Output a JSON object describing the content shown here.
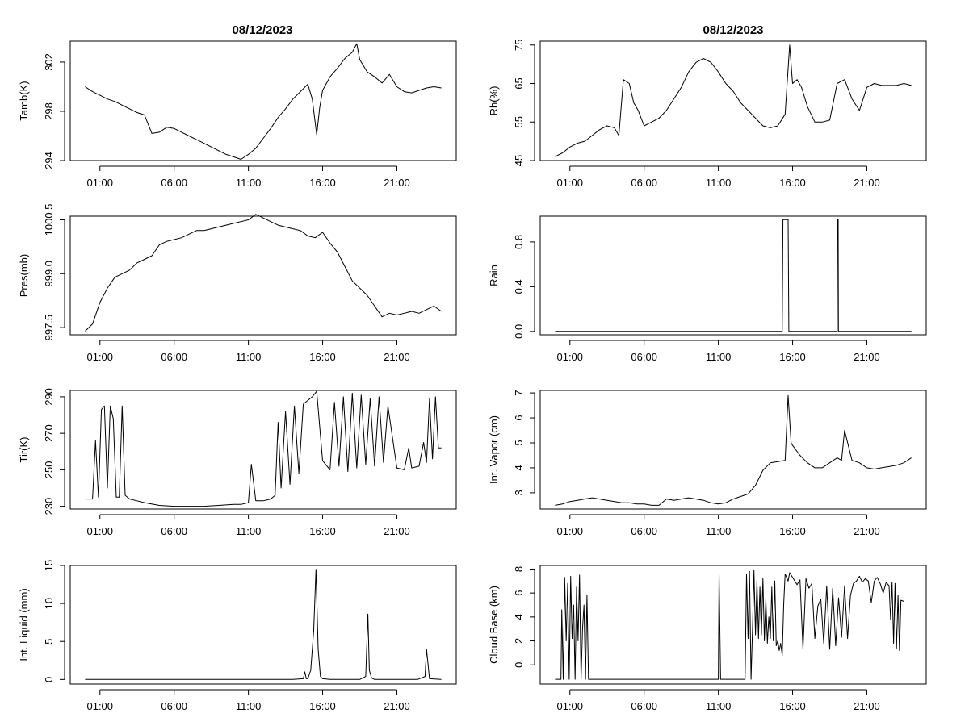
{
  "figure": {
    "date_title": "08/12/2023",
    "x_tick_labels": [
      "01:00",
      "06:00",
      "11:00",
      "16:00",
      "21:00"
    ],
    "x_tick_hours": [
      1,
      6,
      11,
      16,
      21
    ]
  },
  "chart_data": [
    {
      "id": "tamb",
      "type": "line",
      "title": "08/12/2023",
      "ylabel": "Tamb(K)",
      "ylim": [
        294,
        303.7
      ],
      "yticks": [
        294,
        298,
        302
      ],
      "x": [
        0,
        0.5,
        1,
        1.5,
        2,
        2.5,
        3,
        3.5,
        4,
        4.5,
        5,
        5.5,
        6,
        6.5,
        7,
        7.5,
        8,
        8.5,
        9,
        9.5,
        10,
        10.5,
        11,
        11.5,
        12,
        12.5,
        13,
        13.5,
        14,
        14.5,
        15,
        15.3,
        15.6,
        15.8,
        16,
        16.5,
        17,
        17.5,
        18,
        18.3,
        18.5,
        19,
        19.5,
        20,
        20.5,
        21,
        21.5,
        22,
        22.5,
        23,
        23.5,
        24
      ],
      "values": [
        300.0,
        299.6,
        299.3,
        299.0,
        298.8,
        298.5,
        298.2,
        297.9,
        297.7,
        296.2,
        296.3,
        296.7,
        296.6,
        296.3,
        296.0,
        295.7,
        295.4,
        295.1,
        294.8,
        294.5,
        294.3,
        294.1,
        294.5,
        295.0,
        295.8,
        296.6,
        297.5,
        298.2,
        299.0,
        299.6,
        300.2,
        299.0,
        296.1,
        298.3,
        299.7,
        300.8,
        301.5,
        302.3,
        302.8,
        303.5,
        302.2,
        301.2,
        300.8,
        300.3,
        301.0,
        300.0,
        299.6,
        299.5,
        299.7,
        299.9,
        300.0,
        299.9
      ]
    },
    {
      "id": "rh",
      "type": "line",
      "title": "08/12/2023",
      "ylabel": "Rh(%)",
      "ylim": [
        45,
        76
      ],
      "yticks": [
        45,
        55,
        65,
        75
      ],
      "x": [
        0,
        0.5,
        1,
        1.5,
        2,
        2.5,
        3,
        3.5,
        4,
        4.3,
        4.6,
        5,
        5.3,
        5.6,
        6,
        6.5,
        7,
        7.5,
        8,
        8.5,
        9,
        9.5,
        10,
        10.5,
        11,
        11.5,
        12,
        12.5,
        13,
        13.5,
        14,
        14.5,
        15,
        15.5,
        15.8,
        16,
        16.3,
        16.6,
        17,
        17.5,
        18,
        18.5,
        19,
        19.5,
        20,
        20.5,
        21,
        21.5,
        22,
        22.5,
        23,
        23.5,
        24
      ],
      "values": [
        46,
        47,
        48.5,
        49.5,
        50,
        51.5,
        53,
        54,
        53.5,
        51.5,
        66,
        65,
        60,
        58,
        54,
        55,
        56,
        58,
        61,
        64,
        68,
        70.5,
        71.5,
        70.5,
        68,
        65,
        63,
        60,
        58,
        56,
        54,
        53.5,
        54,
        57,
        75,
        65,
        66,
        64,
        59,
        55,
        55,
        55.5,
        65,
        66,
        61,
        58,
        64,
        65,
        64.5,
        64.5,
        64.5,
        65,
        64.5
      ]
    },
    {
      "id": "pres",
      "type": "line",
      "title": "",
      "ylabel": "Pres(mb)",
      "ylim": [
        997.3,
        1000.6
      ],
      "yticks": [
        997.5,
        999.0,
        1000.5
      ],
      "x": [
        0,
        0.5,
        1,
        1.5,
        2,
        2.5,
        3,
        3.5,
        4,
        4.5,
        5,
        5.5,
        6,
        6.5,
        7,
        7.5,
        8,
        8.5,
        9,
        9.5,
        10,
        10.5,
        11,
        11.5,
        12,
        12.5,
        13,
        13.5,
        14,
        14.5,
        15,
        15.5,
        16,
        16.5,
        17,
        17.5,
        18,
        18.5,
        19,
        19.5,
        20,
        20.5,
        21,
        21.5,
        22,
        22.5,
        23,
        23.5,
        24
      ],
      "values": [
        997.4,
        997.6,
        998.2,
        998.6,
        998.9,
        999.0,
        999.1,
        999.3,
        999.4,
        999.5,
        999.8,
        999.9,
        999.95,
        1000.0,
        1000.1,
        1000.2,
        1000.2,
        1000.25,
        1000.3,
        1000.35,
        1000.4,
        1000.45,
        1000.5,
        1000.65,
        1000.55,
        1000.45,
        1000.35,
        1000.3,
        1000.25,
        1000.2,
        1000.05,
        1000.0,
        1000.15,
        999.85,
        999.6,
        999.2,
        998.8,
        998.6,
        998.4,
        998.1,
        997.8,
        997.9,
        997.85,
        997.9,
        997.95,
        997.9,
        998.0,
        998.1,
        997.95
      ]
    },
    {
      "id": "rain",
      "type": "line",
      "title": "",
      "ylabel": "Rain",
      "ylim": [
        -0.03,
        1.03
      ],
      "yticks": [
        0.0,
        0.4,
        0.8
      ],
      "x": [
        0,
        15.3,
        15.35,
        15.7,
        15.75,
        19.0,
        19.02,
        19.07,
        19.09,
        24
      ],
      "values": [
        0,
        0,
        1,
        1,
        0,
        0,
        1,
        1,
        0,
        0
      ]
    },
    {
      "id": "tir",
      "type": "line",
      "title": "",
      "ylabel": "Tir(K)",
      "ylim": [
        228.5,
        293.5
      ],
      "yticks": [
        230,
        250,
        270,
        290
      ],
      "x": [
        0,
        0.5,
        0.7,
        0.9,
        1.1,
        1.3,
        1.5,
        1.7,
        1.9,
        2.1,
        2.3,
        2.5,
        2.7,
        3,
        3.5,
        4,
        5,
        6,
        7,
        8,
        9,
        10,
        10.5,
        11,
        11.2,
        11.5,
        12,
        12.5,
        12.8,
        13,
        13.2,
        13.5,
        13.8,
        14.1,
        14.4,
        14.7,
        15,
        15.3,
        15.6,
        16,
        16.5,
        16.8,
        17.1,
        17.4,
        17.7,
        18,
        18.3,
        18.6,
        18.9,
        19.2,
        19.5,
        19.8,
        20.1,
        20.4,
        21,
        21.5,
        21.8,
        22,
        22.5,
        22.8,
        23,
        23.2,
        23.4,
        23.6,
        23.8,
        24
      ],
      "values": [
        234,
        234,
        266,
        235,
        283,
        285,
        240,
        285,
        278,
        235,
        235,
        285,
        236,
        234,
        233,
        232,
        230.5,
        230,
        230,
        230,
        230.5,
        231,
        231,
        232,
        253,
        233,
        233,
        234,
        236,
        276,
        240,
        282,
        242,
        285,
        248,
        286,
        288,
        290,
        293,
        255,
        250,
        287,
        252,
        290,
        249,
        292,
        251,
        291,
        253,
        289,
        252,
        290,
        254,
        285,
        251,
        250,
        262,
        251,
        252,
        265,
        254,
        289,
        256,
        290,
        262,
        262
      ]
    },
    {
      "id": "vapor",
      "type": "line",
      "title": "",
      "ylabel": "Int. Vapor (cm)",
      "ylim": [
        2.35,
        7.1
      ],
      "yticks": [
        3,
        4,
        5,
        6,
        7
      ],
      "x": [
        0,
        0.5,
        1,
        1.5,
        2,
        2.5,
        3,
        3.5,
        4,
        4.5,
        5,
        5.5,
        6,
        6.5,
        7,
        7.5,
        8,
        8.5,
        9,
        9.5,
        10,
        10.5,
        11,
        11.5,
        12,
        12.5,
        13,
        13.5,
        14,
        14.5,
        15,
        15.5,
        15.7,
        15.9,
        16,
        16.5,
        17,
        17.5,
        18,
        18.5,
        19,
        19.3,
        19.5,
        20,
        20.5,
        21,
        21.5,
        22,
        22.5,
        23,
        23.5,
        24
      ],
      "values": [
        2.5,
        2.55,
        2.65,
        2.7,
        2.75,
        2.8,
        2.75,
        2.7,
        2.65,
        2.6,
        2.6,
        2.55,
        2.55,
        2.5,
        2.5,
        2.75,
        2.7,
        2.75,
        2.8,
        2.75,
        2.7,
        2.6,
        2.55,
        2.6,
        2.75,
        2.85,
        2.95,
        3.3,
        3.9,
        4.2,
        4.25,
        4.3,
        6.9,
        5.0,
        4.9,
        4.5,
        4.2,
        4.0,
        4.0,
        4.2,
        4.4,
        4.3,
        5.5,
        4.3,
        4.2,
        4.0,
        3.95,
        4.0,
        4.05,
        4.1,
        4.2,
        4.4
      ]
    },
    {
      "id": "liquid",
      "type": "line",
      "title": "",
      "ylabel": "Int. Liquid (mm)",
      "ylim": [
        -0.6,
        15
      ],
      "yticks": [
        0,
        5,
        10,
        15
      ],
      "x": [
        0,
        14,
        14.7,
        14.8,
        14.9,
        15.0,
        15.2,
        15.4,
        15.55,
        15.7,
        15.85,
        16.0,
        16.5,
        18.5,
        18.9,
        19.05,
        19.15,
        19.3,
        19.5,
        20,
        22.4,
        22.9,
        23.0,
        23.1,
        23.2,
        24
      ],
      "values": [
        0,
        0,
        0.1,
        1.0,
        0.1,
        0.1,
        1.2,
        6.5,
        14.5,
        4.0,
        0.4,
        0.1,
        0,
        0,
        0.4,
        8.6,
        1.2,
        0.2,
        0,
        0,
        0,
        0.4,
        4.0,
        2.0,
        0.1,
        0
      ]
    },
    {
      "id": "cloudbase",
      "type": "line",
      "title": "",
      "ylabel": "Cloud Base (km)",
      "ylim": [
        -1.6,
        8.3
      ],
      "yticks": [
        0,
        2,
        4,
        6,
        8
      ],
      "x": [
        0,
        0.4,
        0.45,
        0.55,
        0.65,
        0.75,
        0.85,
        0.95,
        1.05,
        1.15,
        1.25,
        1.35,
        1.45,
        1.55,
        1.65,
        1.75,
        1.85,
        1.95,
        2.05,
        2.15,
        2.25,
        2.35,
        2.45,
        2.5,
        11.0,
        11.05,
        11.15,
        11.3,
        12.8,
        12.9,
        13.0,
        13.1,
        13.2,
        13.3,
        13.4,
        13.5,
        13.6,
        13.7,
        13.8,
        13.9,
        14.0,
        14.1,
        14.2,
        14.3,
        14.4,
        14.5,
        14.6,
        14.7,
        14.8,
        14.9,
        15.0,
        15.1,
        15.2,
        15.3,
        15.4,
        15.5,
        15.7,
        15.8,
        16.0,
        16.3,
        16.5,
        16.7,
        16.9,
        17.1,
        17.3,
        17.5,
        17.7,
        17.9,
        18.1,
        18.3,
        18.5,
        18.7,
        18.9,
        19.1,
        19.3,
        19.5,
        19.7,
        19.9,
        20.1,
        20.3,
        20.5,
        20.7,
        20.9,
        21.1,
        21.3,
        21.5,
        21.7,
        21.9,
        22.1,
        22.3,
        22.5,
        22.6,
        22.7,
        22.8,
        22.9,
        23.0,
        23.1,
        23.2,
        23.3,
        23.5
      ],
      "values": [
        -1.2,
        -1.2,
        4.6,
        -1.2,
        7.3,
        2.0,
        6.8,
        -1.2,
        7.4,
        2.2,
        5.0,
        -1.2,
        6.5,
        2.0,
        7.5,
        -1.2,
        3.0,
        5.0,
        -1.2,
        5.8,
        -1.2,
        -1.2,
        -1.2,
        -1.2,
        -1.2,
        7.7,
        -1.2,
        -1.2,
        -1.2,
        7.6,
        2.2,
        7.8,
        -1.2,
        3.0,
        7.9,
        2.5,
        7.0,
        2.2,
        6.5,
        2.5,
        7.2,
        2.0,
        5.5,
        1.8,
        4.0,
        2.2,
        6.5,
        2.0,
        7.0,
        1.6,
        2.0,
        1.2,
        1.8,
        0.8,
        5.0,
        7.6,
        7.0,
        7.7,
        7.3,
        6.7,
        7.1,
        1.3,
        7.2,
        6.4,
        6.8,
        2.2,
        4.9,
        5.5,
        1.8,
        6.6,
        1.3,
        6.4,
        1.6,
        5.6,
        2.3,
        6.6,
        2.2,
        5.8,
        6.8,
        7.0,
        7.4,
        6.9,
        7.2,
        7.0,
        5.2,
        7.0,
        7.3,
        6.8,
        6.0,
        6.9,
        6.6,
        3.8,
        6.9,
        1.8,
        6.8,
        1.4,
        5.8,
        1.2,
        5.4,
        5.3
      ]
    }
  ]
}
